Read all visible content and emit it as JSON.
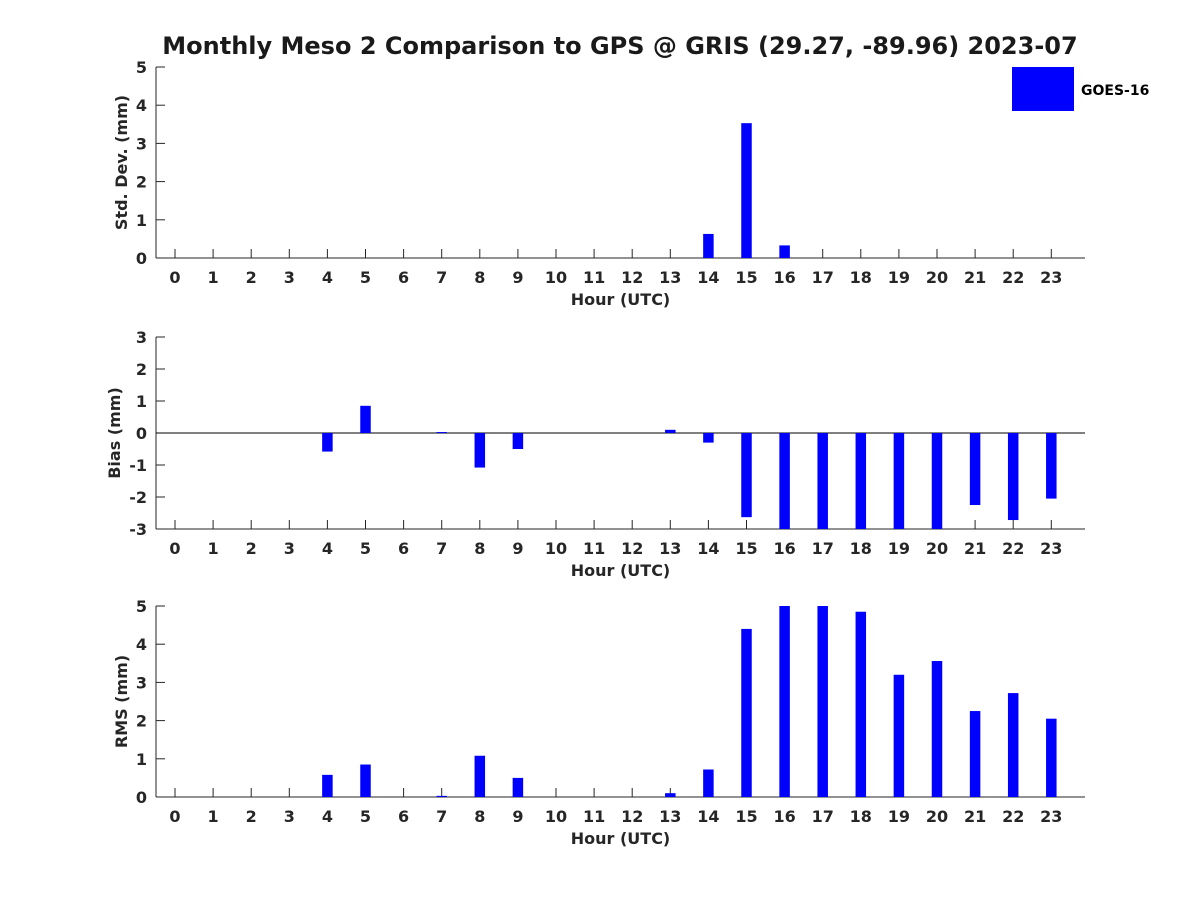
{
  "title": "Monthly Meso 2 Comparison to GPS @ GRIS (29.27, -89.96) 2023-07",
  "colors": {
    "bar": "#0000ff",
    "axis": "#262626",
    "zero_line": "#000000"
  },
  "legend": {
    "entries": [
      "GOES-16"
    ],
    "placement": "top-right"
  },
  "chart_data": [
    {
      "type": "bar",
      "categories": [
        "0",
        "1",
        "2",
        "3",
        "4",
        "5",
        "6",
        "7",
        "8",
        "9",
        "10",
        "11",
        "12",
        "13",
        "14",
        "15",
        "16",
        "17",
        "18",
        "19",
        "20",
        "21",
        "22",
        "23"
      ],
      "series": [
        {
          "name": "GOES-16",
          "values": [
            0,
            0,
            0,
            0,
            0,
            0,
            0,
            0,
            0,
            0,
            0,
            0,
            0,
            0,
            0.63,
            3.53,
            0.33,
            0,
            0,
            0,
            0,
            0,
            0,
            0
          ]
        }
      ],
      "xlabel": "Hour (UTC)",
      "ylabel": "Std. Dev. (mm)",
      "ylim": [
        0,
        5
      ],
      "yticks": [
        "0",
        "1",
        "2",
        "3",
        "4",
        "5"
      ],
      "grid": false
    },
    {
      "type": "bar",
      "categories": [
        "0",
        "1",
        "2",
        "3",
        "4",
        "5",
        "6",
        "7",
        "8",
        "9",
        "10",
        "11",
        "12",
        "13",
        "14",
        "15",
        "16",
        "17",
        "18",
        "19",
        "20",
        "21",
        "22",
        "23"
      ],
      "series": [
        {
          "name": "GOES-16",
          "values": [
            0,
            0,
            0,
            0,
            -0.58,
            0.85,
            0,
            0.03,
            -1.08,
            -0.5,
            0,
            0,
            0,
            0.1,
            -0.3,
            -2.63,
            -3,
            -3,
            -3,
            -3,
            -3,
            -2.25,
            -2.72,
            -2.05
          ]
        }
      ],
      "xlabel": "Hour (UTC)",
      "ylabel": "Bias (mm)",
      "ylim": [
        -3,
        3
      ],
      "yticks": [
        "-3",
        "-2",
        "-1",
        "0",
        "1",
        "2",
        "3"
      ],
      "grid": false
    },
    {
      "type": "bar",
      "categories": [
        "0",
        "1",
        "2",
        "3",
        "4",
        "5",
        "6",
        "7",
        "8",
        "9",
        "10",
        "11",
        "12",
        "13",
        "14",
        "15",
        "16",
        "17",
        "18",
        "19",
        "20",
        "21",
        "22",
        "23"
      ],
      "series": [
        {
          "name": "GOES-16",
          "values": [
            0,
            0,
            0,
            0,
            0.58,
            0.85,
            0,
            0.03,
            1.08,
            0.5,
            0,
            0,
            0,
            0.1,
            0.72,
            4.4,
            5,
            5,
            4.85,
            3.2,
            3.56,
            2.25,
            2.72,
            2.05
          ]
        }
      ],
      "xlabel": "Hour (UTC)",
      "ylabel": "RMS (mm)",
      "ylim": [
        0,
        5
      ],
      "yticks": [
        "0",
        "1",
        "2",
        "3",
        "4",
        "5"
      ],
      "grid": false
    }
  ]
}
